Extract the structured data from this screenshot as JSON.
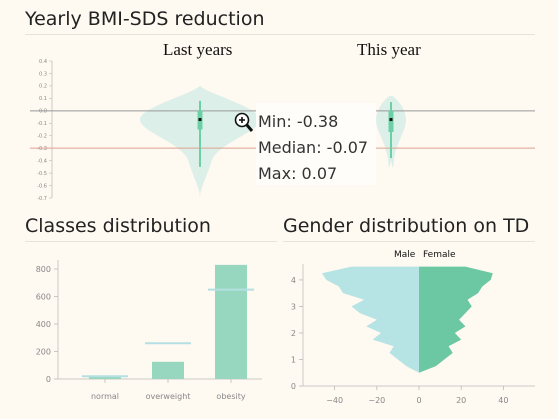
{
  "bmi_panel": {
    "title": "Yearly BMI-SDS reduction",
    "group_labels": [
      "Last years",
      "This year"
    ],
    "tooltip": {
      "min_label": "Min: -0.38",
      "median_label": "Median: -0.07",
      "max_label": "Max: 0.07"
    },
    "icon": "zoom-in-magnifier-icon"
  },
  "classes_panel": {
    "title": "Classes distribution"
  },
  "gender_panel": {
    "title": "Gender distribution on TD",
    "legend": [
      "Male",
      "Female"
    ]
  },
  "colors": {
    "background": "#fef9f1",
    "violin_fill": "#dcefe8",
    "box_green": "#6cd0a6",
    "bar_fill": "#97d7bf",
    "male_fill": "#b6e3e3",
    "female_fill": "#6cc7a3",
    "zero_line": "#999999",
    "reference_line": "#e0a090"
  },
  "chart_data": [
    {
      "type": "violin",
      "ylim": [
        -0.7,
        0.4
      ],
      "yticks": [
        0.4,
        0.3,
        0.2,
        0.1,
        0.0,
        -0.1,
        -0.2,
        -0.3,
        -0.4,
        -0.5,
        -0.6,
        -0.7
      ],
      "ytick_labels": [
        "0.4",
        "0.3",
        "0.2",
        "0.1",
        "0.0",
        "-0.1",
        "-0.2",
        "-0.3",
        "-0.4",
        "-0.5",
        "-0.6",
        "-0.7"
      ],
      "reference_lines": [
        0.0,
        -0.3
      ],
      "series": [
        {
          "category": "Last years",
          "min": -0.45,
          "q1": -0.15,
          "median": -0.07,
          "q3": 0.0,
          "max": 0.08,
          "range": [
            -0.7,
            0.2
          ]
        },
        {
          "category": "This year",
          "min": -0.38,
          "q1": -0.17,
          "median": -0.07,
          "q3": 0.0,
          "max": 0.07,
          "range": [
            -0.42,
            0.12
          ]
        }
      ]
    },
    {
      "type": "bar",
      "categories": [
        "normal",
        "overweight",
        "obesity"
      ],
      "values": [
        15,
        125,
        830
      ],
      "reference_values": [
        20,
        260,
        650
      ],
      "yticks": [
        0,
        200,
        400,
        600,
        800
      ],
      "ytick_labels": [
        "0",
        "200",
        "400",
        "600",
        "800"
      ],
      "ylim": [
        0,
        880
      ]
    },
    {
      "type": "area",
      "series_names": [
        "Male",
        "Female"
      ],
      "y": [
        0,
        0.25,
        0.5,
        0.75,
        1.0,
        1.25,
        1.5,
        1.75,
        2.0,
        2.25,
        2.5,
        2.75,
        3.0,
        3.25,
        3.5,
        3.75,
        4.0,
        4.25,
        4.5
      ],
      "male": [
        0,
        0,
        0,
        6,
        10,
        14,
        12,
        22,
        18,
        25,
        20,
        28,
        32,
        26,
        36,
        38,
        44,
        46,
        32
      ],
      "female": [
        0,
        0,
        0,
        8,
        12,
        16,
        14,
        20,
        17,
        22,
        19,
        22,
        25,
        23,
        28,
        30,
        34,
        35,
        22
      ],
      "xticks": [
        -40,
        -20,
        0,
        20,
        40
      ],
      "xtick_labels": [
        "−40",
        "−20",
        "0",
        "20",
        "40"
      ],
      "yticks": [
        0,
        1,
        2,
        3,
        4
      ],
      "ytick_labels": [
        "0",
        "1",
        "2",
        "3",
        "4"
      ],
      "xlim": [
        -55,
        55
      ],
      "ylim": [
        0,
        4.6
      ]
    }
  ]
}
